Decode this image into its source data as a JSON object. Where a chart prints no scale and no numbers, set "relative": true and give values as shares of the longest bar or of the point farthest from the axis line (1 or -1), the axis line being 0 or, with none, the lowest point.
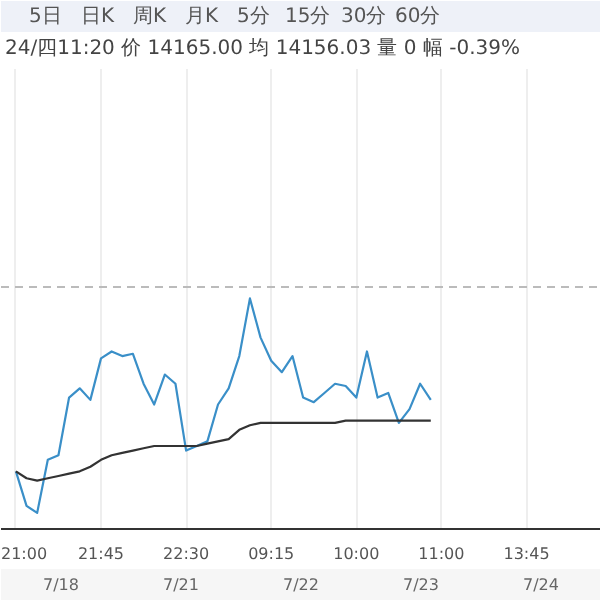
{
  "chart_data": {
    "type": "line",
    "relative": true,
    "grid": "x",
    "marker": "none",
    "line_style": "solid",
    "categories": [
      "21:00",
      null,
      null,
      null,
      null,
      null,
      null,
      null,
      "21:45",
      null,
      null,
      null,
      null,
      null,
      null,
      null,
      "22:30",
      null,
      null,
      null,
      null,
      null,
      null,
      null,
      "09:15",
      null,
      null,
      null,
      null,
      null,
      null,
      null,
      "10:00",
      null,
      null,
      null,
      null,
      null,
      null,
      null,
      "11:00",
      null,
      null,
      null,
      null,
      null,
      null,
      null,
      "13:45",
      null,
      null
    ],
    "series": [
      {
        "color": "#3a8fc8",
        "values": [
          0.25,
          0.1,
          0.07,
          0.3,
          0.32,
          0.57,
          0.61,
          0.56,
          0.74,
          0.77,
          0.75,
          0.76,
          0.63,
          0.54,
          0.67,
          0.63,
          0.34,
          0.36,
          0.38,
          0.54,
          0.61,
          0.75,
          1,
          0.83,
          0.73,
          0.68,
          0.75,
          0.57,
          0.55,
          0.59,
          0.63,
          0.62,
          0.57,
          0.77,
          0.57,
          0.59,
          0.46,
          0.52,
          0.63,
          0.56,
          null,
          null,
          null,
          null,
          null,
          null,
          null,
          null,
          null,
          null,
          null
        ]
      },
      {
        "color": "#333333",
        "values": [
          0.25,
          0.22,
          0.21,
          0.22,
          0.23,
          0.24,
          0.25,
          0.27,
          0.3,
          0.32,
          0.33,
          0.34,
          0.35,
          0.36,
          0.36,
          0.36,
          0.36,
          0.36,
          0.37,
          0.38,
          0.39,
          0.43,
          0.45,
          0.46,
          0.46,
          0.46,
          0.46,
          0.46,
          0.46,
          0.46,
          0.46,
          0.47,
          0.47,
          0.47,
          0.47,
          0.47,
          0.47,
          0.47,
          0.47,
          0.47,
          null,
          null,
          null,
          null,
          null,
          null,
          null,
          null,
          null,
          null,
          null
        ]
      }
    ],
    "ref_lines": [
      {
        "axis": "y",
        "value": 1.05,
        "color": "#bbbbbb",
        "line_style": "dashed"
      }
    ],
    "annotations": [
      "5日",
      "日K",
      "周K",
      "月K",
      "5分",
      "15分",
      "30分",
      "60分",
      "24/四11:20 价 14165.00 均 14156.03 量 0 幅 -0.39%",
      "7/18",
      "7/21",
      "7/22",
      "7/23",
      "7/24"
    ]
  }
}
